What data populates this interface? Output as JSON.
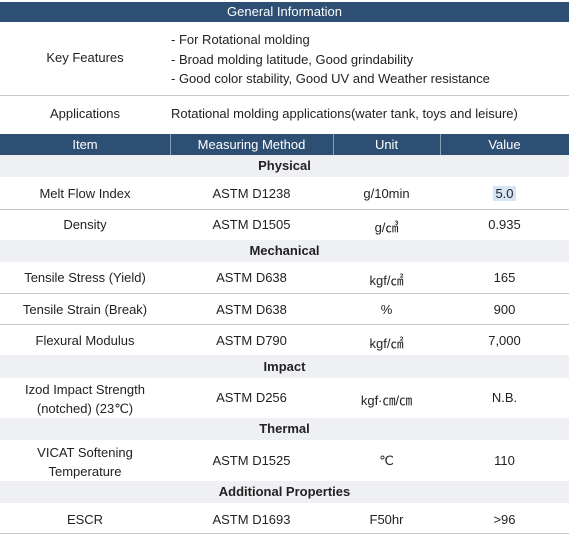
{
  "general": {
    "title": "General Information",
    "key_features_label": "Key Features",
    "features": [
      "- For Rotational molding",
      "- Broad molding latitude, Good grindability",
      "- Good color stability, Good UV and Weather resistance"
    ],
    "applications_label": "Applications",
    "applications": "Rotational molding applications(water tank, toys and leisure)"
  },
  "columns": [
    "Item",
    "Measuring Method",
    "Unit",
    "Value"
  ],
  "sections": [
    {
      "title": "Physical",
      "rows": [
        {
          "item": "Melt Flow Index",
          "method": "ASTM D1238",
          "unit": "g/10min",
          "value": "5.0"
        },
        {
          "item": "Density",
          "method": "ASTM D1505",
          "unit": "g/㎤",
          "value": "0.935"
        }
      ]
    },
    {
      "title": "Mechanical",
      "rows": [
        {
          "item": "Tensile Stress (Yield)",
          "method": "ASTM D638",
          "unit": "kgf/㎠",
          "value": "165"
        },
        {
          "item": "Tensile Strain (Break)",
          "method": "ASTM D638",
          "unit": "%",
          "value": "900"
        },
        {
          "item": "Flexural Modulus",
          "method": "ASTM D790",
          "unit": "kgf/㎠",
          "value": "7,000"
        }
      ]
    },
    {
      "title": "Impact",
      "rows": [
        {
          "item_line1": "Izod Impact Strength",
          "item_line2": "(notched) (23℃)",
          "method": "ASTM D256",
          "unit": "kgf·㎝/㎝",
          "value": "N.B."
        }
      ]
    },
    {
      "title": "Thermal",
      "rows": [
        {
          "item_line1": "VICAT Softening",
          "item_line2": "Temperature",
          "method": "ASTM D1525",
          "unit": "℃",
          "value": "110"
        }
      ]
    },
    {
      "title": "Additional Properties",
      "rows": [
        {
          "item": "ESCR",
          "method": "ASTM D1693",
          "unit": "F50hr",
          "value": ">96"
        }
      ]
    }
  ],
  "colors": {
    "header_bg": "#2d4f74",
    "section_bg": "#eef0f3",
    "highlight": "#d6e4f5"
  }
}
